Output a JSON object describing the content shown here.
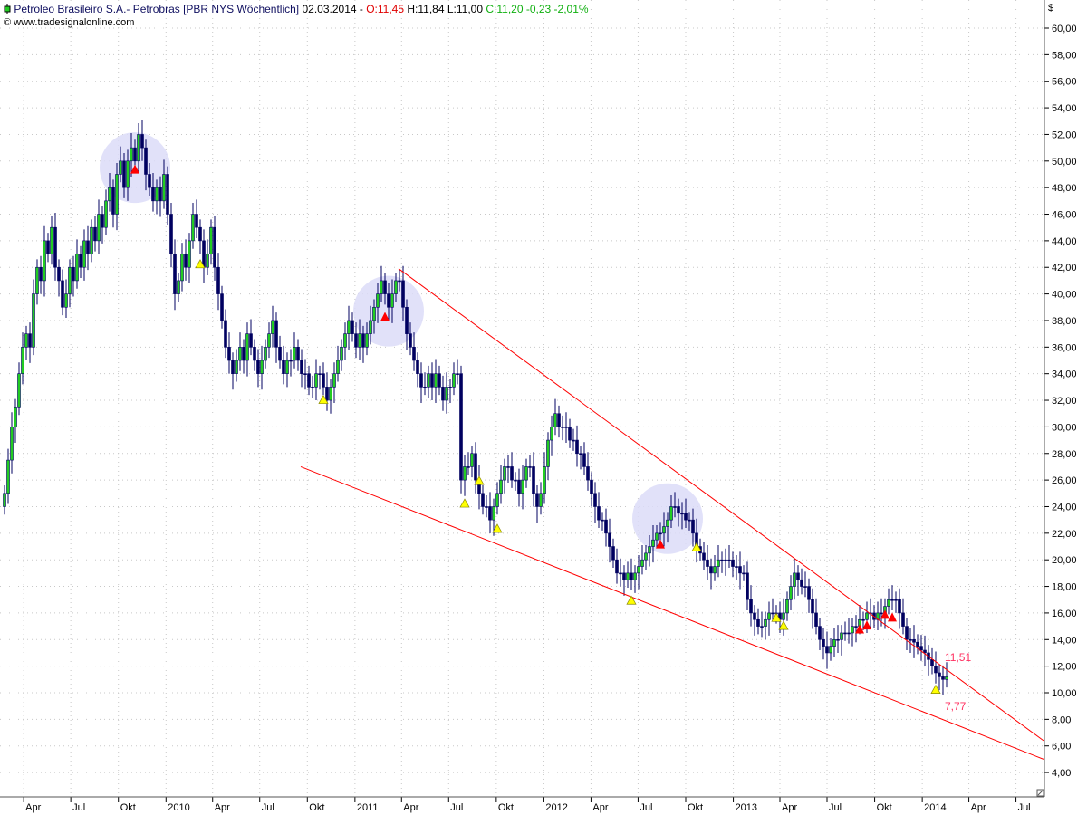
{
  "header": {
    "title": "Petroleo Brasileiro S.A.- Petrobras [PBR NYS  Wöchentlich]",
    "date": "02.03.2014 -",
    "open": "O:11,45",
    "high": "H:11,84",
    "low": "L:11,00",
    "close_change": "C:11,20 -0,23 -2,01%",
    "source": "www.tradesignalonline.com"
  },
  "colors": {
    "up_body": "#22cc22",
    "down_body": "#000060",
    "wick": "#000060",
    "trendline": "#ff0000",
    "signal_buy": "#ffff00",
    "signal_sell": "#ff0000",
    "highlight": "#dcdcf8",
    "label": "#ff3060"
  },
  "chart_data": {
    "type": "candlestick",
    "currency_label": "$",
    "interval": "weekly",
    "first_candle_date": "2009-02-23",
    "xlim": [
      "2009-02-14",
      "2014-09-01"
    ],
    "ylim": [
      3,
      62
    ],
    "grid": true,
    "y_ticks": [
      4,
      6,
      8,
      10,
      12,
      14,
      16,
      18,
      20,
      22,
      24,
      26,
      28,
      30,
      32,
      34,
      36,
      38,
      40,
      42,
      44,
      46,
      48,
      50,
      52,
      54,
      56,
      58,
      60
    ],
    "y_tick_labels": [
      "4,00",
      "6,00",
      "8,00",
      "10,00",
      "12,00",
      "14,00",
      "16,00",
      "18,00",
      "20,00",
      "22,00",
      "24,00",
      "26,00",
      "28,00",
      "30,00",
      "32,00",
      "34,00",
      "36,00",
      "38,00",
      "40,00",
      "42,00",
      "44,00",
      "46,00",
      "48,00",
      "50,00",
      "52,00",
      "54,00",
      "56,00",
      "58,00",
      "60,00"
    ],
    "x_ticks": [
      {
        "date": "2009-04-01",
        "label": "Apr"
      },
      {
        "date": "2009-07-01",
        "label": "Jul"
      },
      {
        "date": "2009-10-01",
        "label": "Okt"
      },
      {
        "date": "2010-01-01",
        "label": "2010"
      },
      {
        "date": "2010-04-01",
        "label": "Apr"
      },
      {
        "date": "2010-07-01",
        "label": "Jul"
      },
      {
        "date": "2010-10-01",
        "label": "Okt"
      },
      {
        "date": "2011-01-01",
        "label": "2011"
      },
      {
        "date": "2011-04-01",
        "label": "Apr"
      },
      {
        "date": "2011-07-01",
        "label": "Jul"
      },
      {
        "date": "2011-10-01",
        "label": "Okt"
      },
      {
        "date": "2012-01-01",
        "label": "2012"
      },
      {
        "date": "2012-04-01",
        "label": "Apr"
      },
      {
        "date": "2012-07-01",
        "label": "Jul"
      },
      {
        "date": "2012-10-01",
        "label": "Okt"
      },
      {
        "date": "2013-01-01",
        "label": "2013"
      },
      {
        "date": "2013-04-01",
        "label": "Apr"
      },
      {
        "date": "2013-07-01",
        "label": "Jul"
      },
      {
        "date": "2013-10-01",
        "label": "Okt"
      },
      {
        "date": "2014-01-01",
        "label": "2014"
      },
      {
        "date": "2014-04-01",
        "label": "Apr"
      },
      {
        "date": "2014-07-01",
        "label": "Jul"
      }
    ],
    "close": [
      25,
      27.5,
      30,
      31.5,
      34,
      36,
      37,
      36,
      40,
      42,
      41,
      44,
      43,
      45,
      42,
      41,
      39,
      40,
      42,
      41,
      43,
      42,
      44,
      43,
      45,
      44,
      46,
      45,
      47,
      48,
      46,
      49,
      50,
      48,
      50,
      51,
      50,
      52,
      51,
      49,
      48,
      47,
      48,
      47,
      49,
      46,
      43,
      40,
      41,
      43,
      42,
      44,
      46,
      45,
      44,
      42,
      43,
      45,
      42,
      40,
      38,
      36,
      35,
      34,
      35,
      36,
      35,
      37,
      36,
      35,
      34,
      35,
      36,
      37,
      38,
      36,
      35,
      34,
      35,
      35,
      36,
      35,
      34,
      34,
      33,
      33,
      34,
      34,
      33,
      32,
      33,
      34,
      35,
      36,
      37,
      38,
      37,
      36,
      37,
      36,
      37,
      38,
      39,
      40,
      41,
      40,
      39,
      40,
      41,
      41,
      39,
      37,
      36,
      35,
      34,
      33,
      33,
      34,
      33,
      34,
      33,
      32,
      33,
      33,
      34,
      34,
      26,
      27,
      27,
      28,
      26,
      25,
      24,
      24,
      23,
      24,
      25,
      26,
      27,
      27,
      26,
      26,
      25,
      26,
      27,
      27,
      25,
      24,
      25,
      27,
      29,
      30,
      31,
      30,
      30,
      30,
      29,
      29,
      28,
      28,
      27,
      26,
      25,
      24,
      23,
      23,
      22,
      21,
      20,
      19,
      19,
      18.5,
      19,
      18.5,
      19,
      19.5,
      20,
      20.5,
      21,
      21.5,
      22,
      22,
      22.5,
      23,
      24,
      24,
      23.5,
      23.5,
      23,
      23,
      22,
      21,
      20.5,
      20,
      19.5,
      19,
      19.5,
      20,
      20,
      20,
      20,
      19.5,
      19.5,
      19,
      19,
      17,
      16,
      15.5,
      15,
      15,
      15.5,
      16,
      16,
      16,
      15.5,
      16,
      17,
      18,
      19,
      18.5,
      18,
      18,
      17,
      16,
      15,
      14,
      13.5,
      13,
      13.5,
      14,
      14,
      14.5,
      14.5,
      14.5,
      15,
      15,
      15.5,
      15.5,
      16,
      16,
      15.5,
      16,
      16,
      16.5,
      17,
      17,
      17,
      16,
      15,
      14,
      14,
      13.8,
      13.5,
      13.2,
      13,
      12.5,
      12,
      11.5,
      11.2,
      11,
      11.2
    ],
    "trendlines": [
      {
        "from": {
          "week": 108.75,
          "price": 41.9
        },
        "to": {
          "week": 286.75,
          "price": 6.4
        },
        "label": "11,51",
        "label_week": 259.5,
        "label_price": 12.4
      },
      {
        "from": {
          "week": 81.75,
          "price": 27.0
        },
        "to": {
          "week": 286.75,
          "price": 5.0
        },
        "label": "7,77",
        "label_week": 259.5,
        "label_price": 8.7
      }
    ],
    "buy_signals": [
      {
        "week": 54,
        "price": 42.3
      },
      {
        "week": 88,
        "price": 32.1
      },
      {
        "week": 127,
        "price": 24.3
      },
      {
        "week": 131,
        "price": 26.0
      },
      {
        "week": 136,
        "price": 22.4
      },
      {
        "week": 173,
        "price": 17.0
      },
      {
        "week": 191,
        "price": 21.0
      },
      {
        "week": 213,
        "price": 15.7
      },
      {
        "week": 215,
        "price": 15.1
      },
      {
        "week": 257,
        "price": 10.3
      }
    ],
    "sell_signals": [
      {
        "week": 36,
        "price": 49.4
      },
      {
        "week": 105,
        "price": 38.3
      },
      {
        "week": 181,
        "price": 21.2
      },
      {
        "week": 236,
        "price": 14.8
      },
      {
        "week": 238,
        "price": 15.1
      },
      {
        "week": 243,
        "price": 15.9
      },
      {
        "week": 245,
        "price": 15.7
      }
    ],
    "highlights": [
      {
        "week": 36,
        "price": 49.5
      },
      {
        "week": 106,
        "price": 38.7
      },
      {
        "week": 183,
        "price": 23.1
      }
    ]
  }
}
